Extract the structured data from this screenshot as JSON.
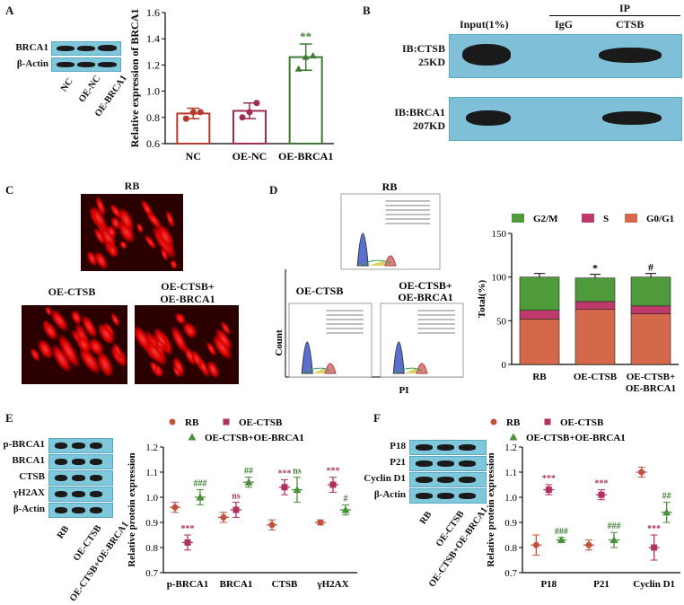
{
  "panels": {
    "A": {
      "label": "A",
      "blot_rows": [
        "BRCA1",
        "β-Actin"
      ],
      "lanes": [
        "NC",
        "OE-NC",
        "OE-BRCA1"
      ]
    },
    "B": {
      "label": "B",
      "ip_header": "IP",
      "columns": [
        "Input(1%)",
        "IgG",
        "CTSB"
      ],
      "rows": [
        {
          "label1": "IB:CTSB",
          "label2": "25KD"
        },
        {
          "label1": "IB:BRCA1",
          "label2": "207KD"
        }
      ]
    },
    "C": {
      "label": "C",
      "images": [
        "RB",
        "OE-CTSB",
        "OE-CTSB+\nOE-BRCA1"
      ],
      "image_titles": {
        "rb": "RB",
        "oe_ctsb": "OE-CTSB",
        "combo_1": "OE-CTSB+",
        "combo_2": "OE-BRCA1"
      }
    },
    "D": {
      "label": "D",
      "hist_titles": {
        "rb": "RB",
        "oe_ctsb": "OE-CTSB",
        "combo_1": "OE-CTSB+",
        "combo_2": "OE-BRCA1"
      },
      "count_label": "Count",
      "pi_label": "PI"
    },
    "E": {
      "label": "E",
      "blot_rows": [
        "p-BRCA1",
        "BRCA1",
        "CTSB",
        "γH2AX",
        "β-Actin"
      ],
      "lanes": [
        "RB",
        "OE-CTSB",
        "OE-CTSB+OE-BRCA1"
      ]
    },
    "F": {
      "label": "F",
      "blot_rows": [
        "P18",
        "P21",
        "Cyclin D1",
        "β-Actin"
      ],
      "lanes": [
        "RB",
        "OE-CTSB",
        "OE-CTSB+OE-BRCA1"
      ]
    }
  },
  "chart_data": [
    {
      "id": "A",
      "type": "bar",
      "categories": [
        "NC",
        "OE-NC",
        "OE-BRCA1"
      ],
      "values": [
        0.83,
        0.85,
        1.26
      ],
      "errors": [
        0.04,
        0.06,
        0.1
      ],
      "points": [
        [
          0.79,
          0.84,
          0.84
        ],
        [
          0.8,
          0.84,
          0.91
        ],
        [
          1.17,
          1.26,
          1.27
        ]
      ],
      "ylabel": "Relative expression of BRCA1",
      "ylim": [
        0.6,
        1.6
      ],
      "yticks": [
        "0.6",
        "0.8",
        "1.0",
        "1.2",
        "1.4",
        "1.6"
      ],
      "annotations": [
        "",
        "",
        "**"
      ],
      "colors": [
        "#b23b2e",
        "#a02c55",
        "#3d7a33"
      ]
    },
    {
      "id": "D",
      "type": "bar",
      "stacked": true,
      "categories": [
        "RB",
        "OE-CTSB",
        "OE-CTSB+\nOE-BRCA1"
      ],
      "category_lines": [
        [
          "RB"
        ],
        [
          "OE-CTSB"
        ],
        [
          "OE-CTSB+",
          "OE-BRCA1"
        ]
      ],
      "series": [
        {
          "name": "G0/G1",
          "values": [
            52,
            63,
            58
          ],
          "color": "#d4684a"
        },
        {
          "name": "S",
          "values": [
            10,
            9,
            9
          ],
          "color": "#c0396b"
        },
        {
          "name": "G2/M",
          "values": [
            38,
            27,
            33
          ],
          "color": "#4f9a3a"
        }
      ],
      "ylabel": "Total(%)",
      "ylim": [
        0,
        150
      ],
      "yticks": [
        "0",
        "50",
        "100",
        "150"
      ],
      "annotations": [
        "",
        "*",
        "#"
      ],
      "legend_order": [
        "G2/M",
        "S",
        "G0/G1"
      ]
    },
    {
      "id": "E",
      "type": "scatter",
      "groups": [
        "p-BRCA1",
        "BRCA1",
        "CTSB",
        "γH2AX"
      ],
      "series": [
        {
          "name": "RB",
          "values": [
            0.96,
            0.92,
            0.89,
            0.9
          ],
          "errors": [
            0.02,
            0.02,
            0.02,
            0.01
          ],
          "marker": "circle",
          "color": "#c0533a"
        },
        {
          "name": "OE-CTSB",
          "values": [
            0.82,
            0.95,
            1.04,
            1.05
          ],
          "errors": [
            0.03,
            0.03,
            0.03,
            0.03
          ],
          "marker": "square",
          "color": "#b03060"
        },
        {
          "name": "OE-CTSB+OE-BRCA1",
          "values": [
            1.0,
            1.06,
            1.03,
            0.95
          ],
          "errors": [
            0.03,
            0.02,
            0.05,
            0.02
          ],
          "marker": "triangle",
          "color": "#4a8f3a"
        }
      ],
      "ylabel": "Relative protein expression",
      "ylim": [
        0.7,
        1.2
      ],
      "yticks": [
        "0.7",
        "0.8",
        "0.9",
        "1.0",
        "1.1",
        "1.2"
      ],
      "annotations": [
        {
          "group": 0,
          "series": 1,
          "text": "***"
        },
        {
          "group": 0,
          "series": 2,
          "text": "###"
        },
        {
          "group": 1,
          "series": 1,
          "text": "ns"
        },
        {
          "group": 1,
          "series": 2,
          "text": "##"
        },
        {
          "group": 2,
          "series": 1,
          "text": "***"
        },
        {
          "group": 2,
          "series": 2,
          "text": "ns"
        },
        {
          "group": 3,
          "series": 1,
          "text": "***"
        },
        {
          "group": 3,
          "series": 2,
          "text": "#"
        }
      ]
    },
    {
      "id": "F",
      "type": "scatter",
      "groups": [
        "P18",
        "P21",
        "Cyclin D1"
      ],
      "series": [
        {
          "name": "RB",
          "values": [
            0.81,
            0.81,
            1.1
          ],
          "errors": [
            0.04,
            0.02,
            0.02
          ],
          "marker": "circle",
          "color": "#c0533a"
        },
        {
          "name": "OE-CTSB",
          "values": [
            1.03,
            1.01,
            0.8
          ],
          "errors": [
            0.02,
            0.02,
            0.05
          ],
          "marker": "square",
          "color": "#b03060"
        },
        {
          "name": "OE-CTSB+OE-BRCA1",
          "values": [
            0.83,
            0.83,
            0.94
          ],
          "errors": [
            0.01,
            0.03,
            0.04
          ],
          "marker": "triangle",
          "color": "#4a8f3a"
        }
      ],
      "ylabel": "Relative protein expression",
      "ylim": [
        0.7,
        1.2
      ],
      "yticks": [
        "0.7",
        "0.8",
        "0.9",
        "1.0",
        "1.1",
        "1.2"
      ],
      "annotations": [
        {
          "group": 0,
          "series": 1,
          "text": "***"
        },
        {
          "group": 0,
          "series": 2,
          "text": "###"
        },
        {
          "group": 1,
          "series": 1,
          "text": "***"
        },
        {
          "group": 1,
          "series": 2,
          "text": "###"
        },
        {
          "group": 2,
          "series": 1,
          "text": "***"
        },
        {
          "group": 2,
          "series": 2,
          "text": "##"
        }
      ]
    }
  ]
}
